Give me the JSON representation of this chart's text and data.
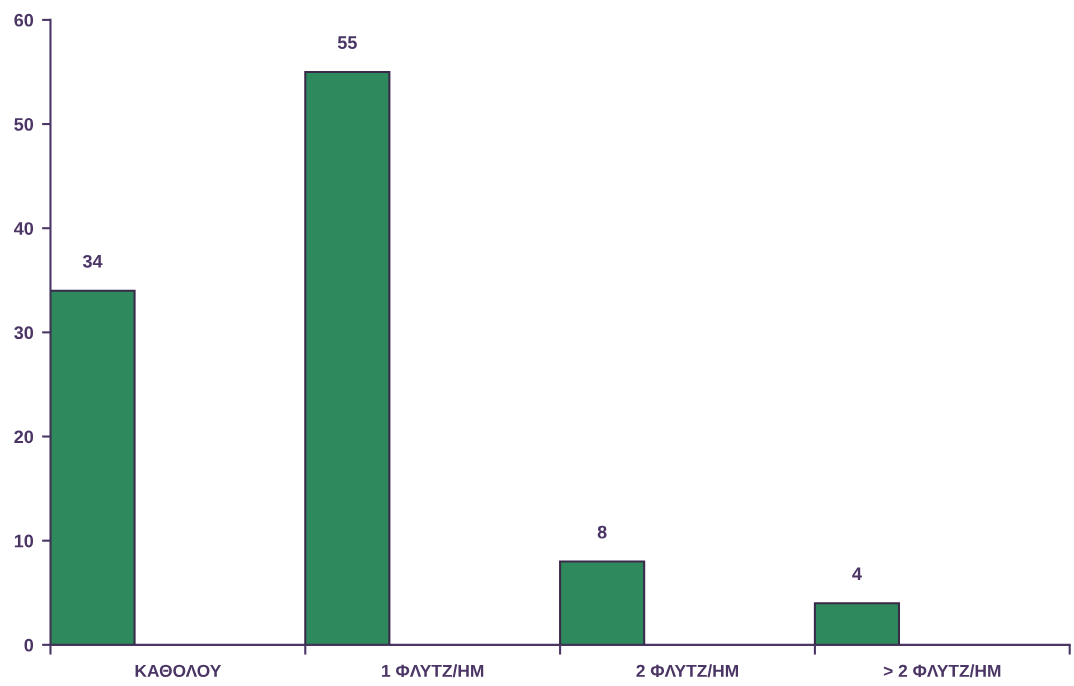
{
  "chart_data": {
    "type": "bar",
    "categories": [
      "ΚΑΘΟΛΟΥ",
      "1 ΦΛΥΤΖ/ΗΜ",
      "2 ΦΛΥΤΖ/ΗΜ",
      "> 2 ΦΛΥΤΖ/ΗΜ"
    ],
    "values": [
      34,
      55,
      8,
      4
    ],
    "color": "#2e8a5c",
    "ylim": [
      0,
      60
    ],
    "yticks": [
      0,
      10,
      20,
      30,
      40,
      50,
      60
    ],
    "data_labels": true,
    "grid": false,
    "legend": false
  }
}
